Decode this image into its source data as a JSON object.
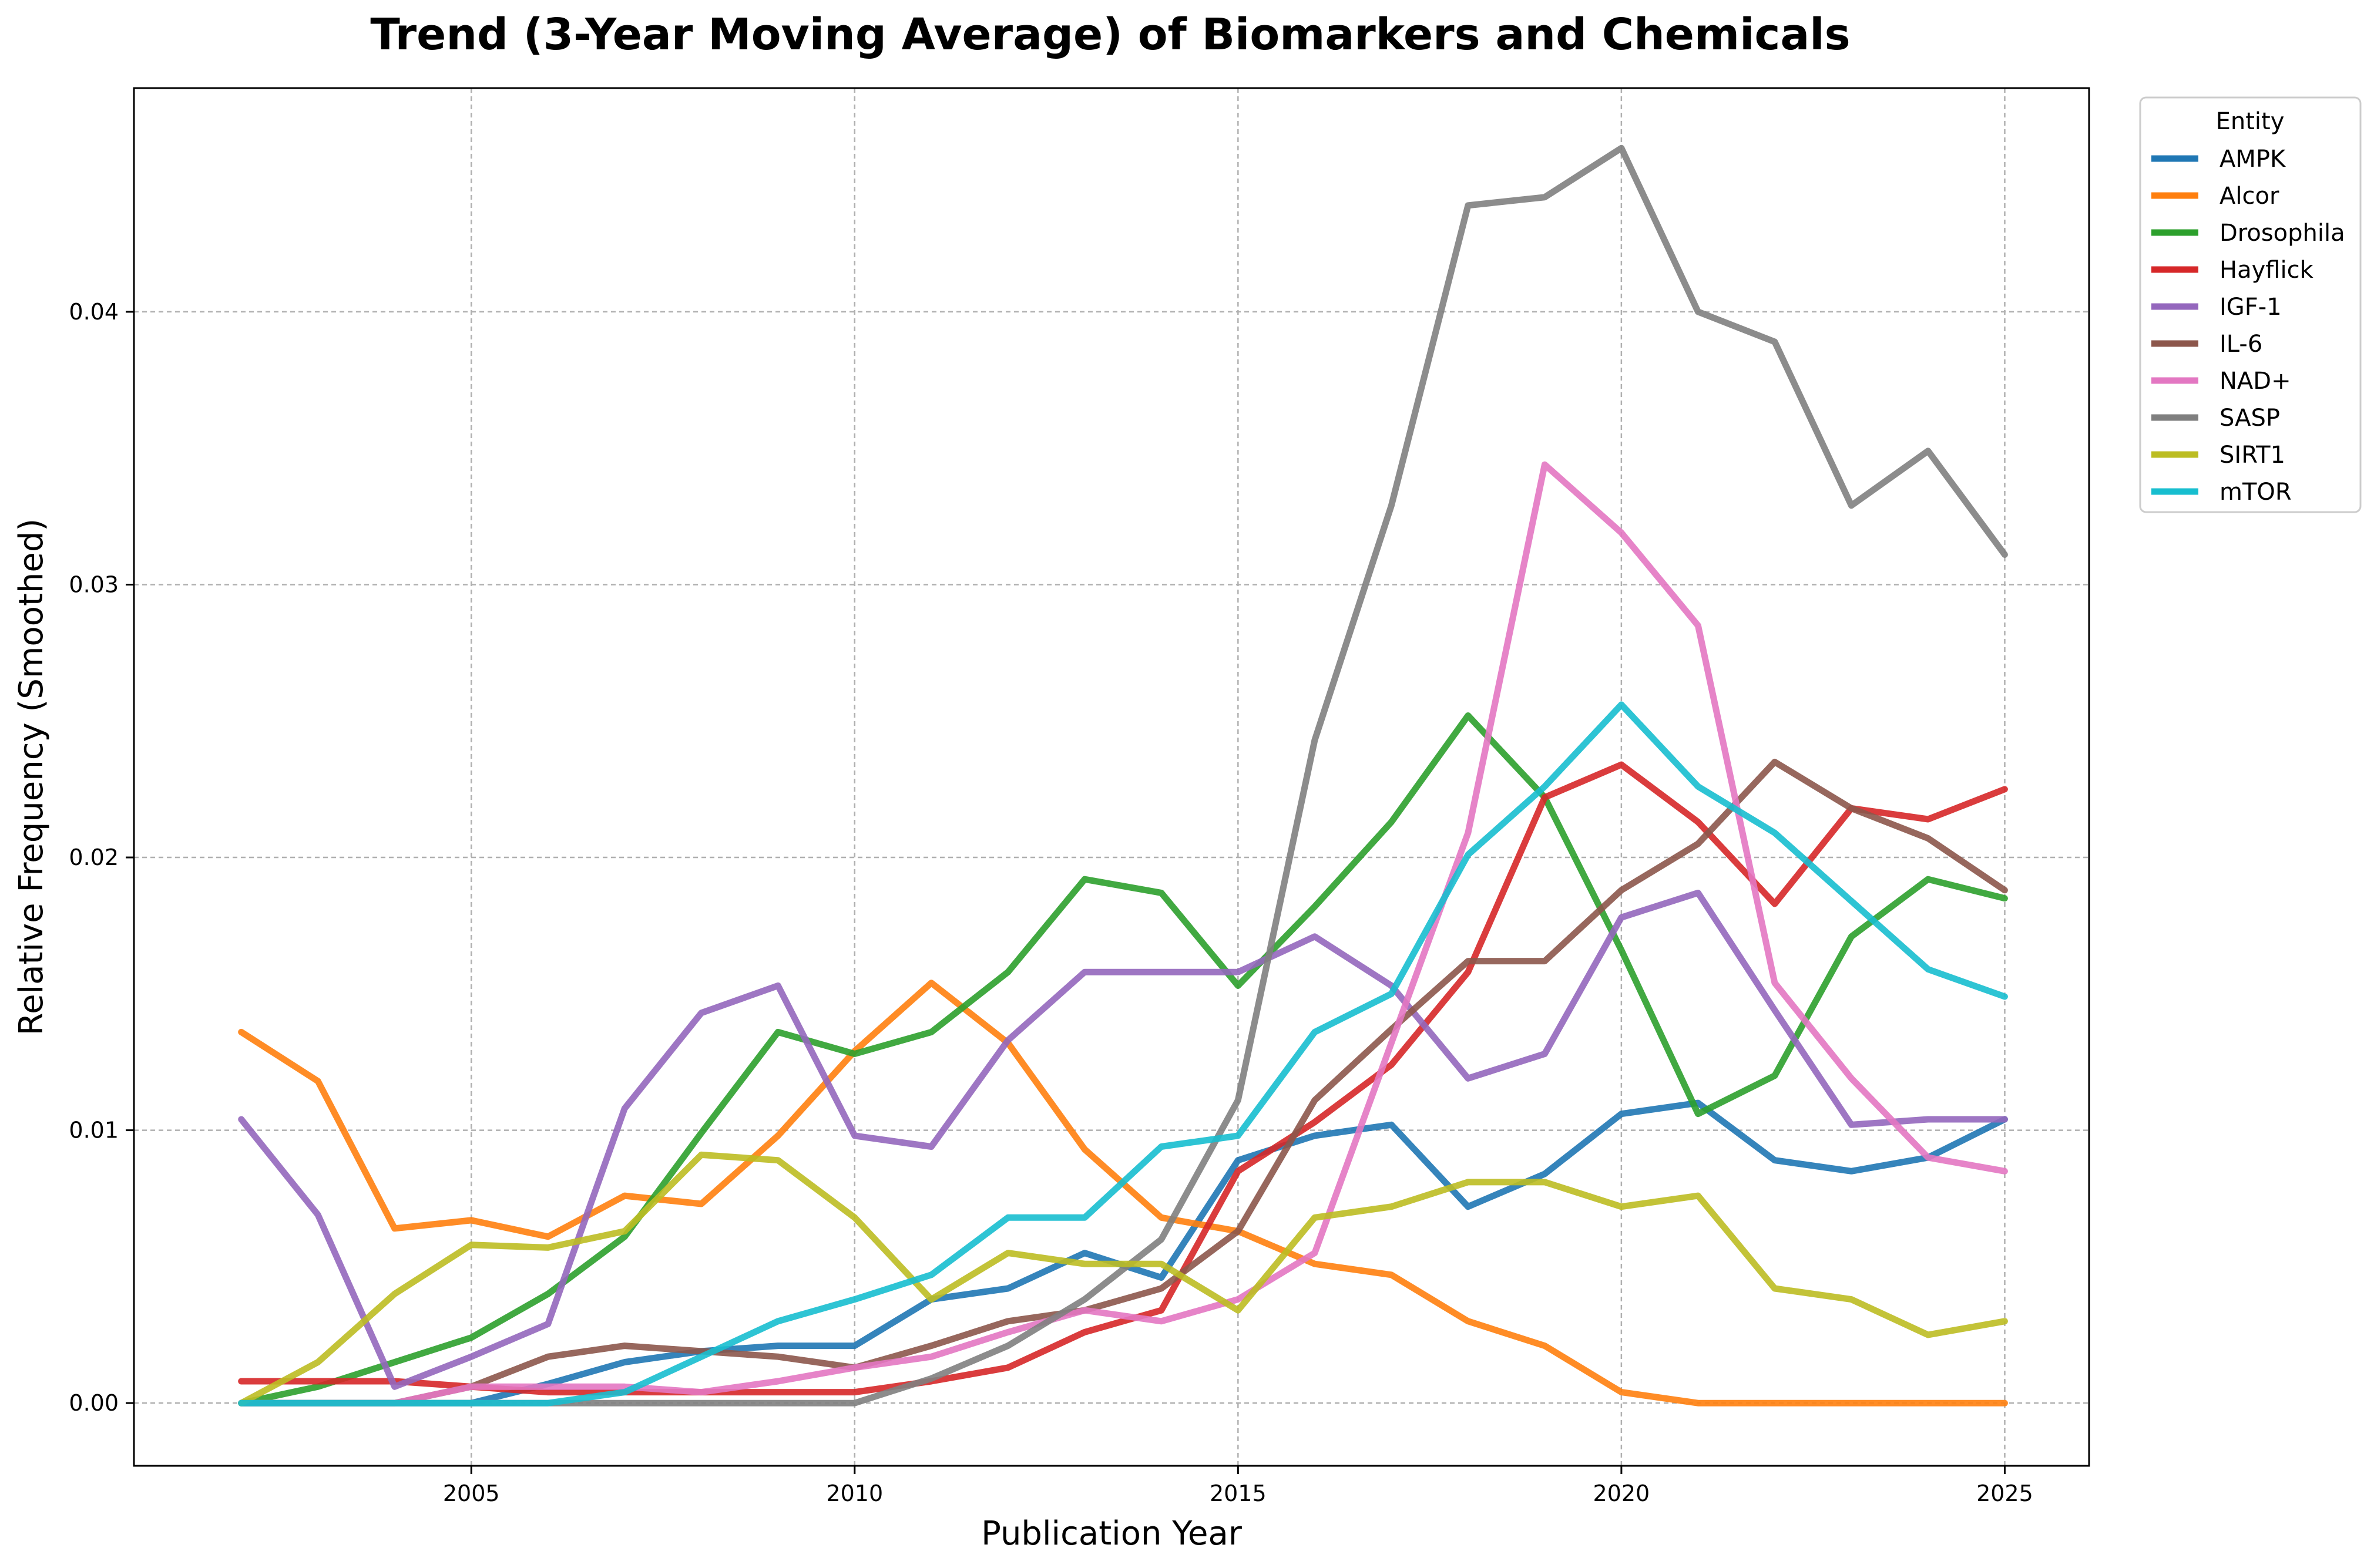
{
  "chart_data": {
    "type": "line",
    "title": "Trend (3-Year Moving Average) of Biomarkers and Chemicals",
    "xlabel": "Publication Year",
    "ylabel": "Relative Frequency (Smoothed)",
    "xlim": [
      2000.6,
      2026.1
    ],
    "ylim": [
      -0.0023,
      0.0482
    ],
    "xticks": [
      2005,
      2010,
      2015,
      2020,
      2025
    ],
    "xtick_labels": [
      "2005",
      "2010",
      "2015",
      "2020",
      "2025"
    ],
    "yticks": [
      0.0,
      0.01,
      0.02,
      0.03,
      0.04
    ],
    "ytick_labels": [
      "0.00",
      "0.01",
      "0.02",
      "0.03",
      "0.04"
    ],
    "grid": true,
    "legend": {
      "title": "Entity",
      "placement": "outside-top-right"
    },
    "x": [
      2002,
      2003,
      2004,
      2005,
      2006,
      2007,
      2008,
      2009,
      2010,
      2011,
      2012,
      2013,
      2014,
      2015,
      2016,
      2017,
      2018,
      2019,
      2020,
      2021,
      2022,
      2023,
      2024,
      2025
    ],
    "series": [
      {
        "name": "AMPK",
        "color": "#1f77b4",
        "values": [
          0.0,
          0.0,
          0.0,
          0.0,
          0.0007,
          0.0015,
          0.0019,
          0.0021,
          0.0021,
          0.0038,
          0.0042,
          0.0055,
          0.0046,
          0.0089,
          0.0098,
          0.0102,
          0.0072,
          0.0084,
          0.0106,
          0.011,
          0.0089,
          0.0085,
          0.009,
          0.0104
        ]
      },
      {
        "name": "Alcor",
        "color": "#ff7f0e",
        "values": [
          0.0136,
          0.0118,
          0.0064,
          0.0067,
          0.0061,
          0.0076,
          0.0073,
          0.0098,
          0.0129,
          0.0154,
          0.0132,
          0.0093,
          0.0068,
          0.0063,
          0.0051,
          0.0047,
          0.003,
          0.0021,
          0.0004,
          0.0,
          0.0,
          0.0,
          0.0,
          0.0
        ]
      },
      {
        "name": "Drosophila",
        "color": "#2ca02c",
        "values": [
          0.0,
          0.0006,
          0.0015,
          0.0024,
          0.004,
          0.0061,
          0.0099,
          0.0136,
          0.0128,
          0.0136,
          0.0158,
          0.0192,
          0.0187,
          0.0153,
          0.0182,
          0.0213,
          0.0252,
          0.0222,
          0.0166,
          0.0106,
          0.012,
          0.0171,
          0.0192,
          0.0185
        ]
      },
      {
        "name": "Hayflick",
        "color": "#d62728",
        "values": [
          0.0008,
          0.0008,
          0.0008,
          0.0006,
          0.0004,
          0.0004,
          0.0004,
          0.0004,
          0.0004,
          0.0008,
          0.0013,
          0.0026,
          0.0034,
          0.0085,
          0.0103,
          0.0124,
          0.0158,
          0.0222,
          0.0234,
          0.0213,
          0.0183,
          0.0218,
          0.0214,
          0.0225
        ]
      },
      {
        "name": "IGF-1",
        "color": "#9467bd",
        "values": [
          0.0104,
          0.0069,
          0.0006,
          0.0017,
          0.0029,
          0.0108,
          0.0143,
          0.0153,
          0.0098,
          0.0094,
          0.0133,
          0.0158,
          0.0158,
          0.0158,
          0.0171,
          0.0153,
          0.0119,
          0.0128,
          0.0178,
          0.0187,
          0.0144,
          0.0102,
          0.0104,
          0.0104
        ]
      },
      {
        "name": "IL-6",
        "color": "#8c564b",
        "values": [
          0.0,
          0.0,
          0.0,
          0.0006,
          0.0017,
          0.0021,
          0.0019,
          0.0017,
          0.0013,
          0.0021,
          0.003,
          0.0034,
          0.0042,
          0.0063,
          0.0111,
          0.0137,
          0.0162,
          0.0162,
          0.0188,
          0.0205,
          0.0235,
          0.0218,
          0.0207,
          0.0188
        ]
      },
      {
        "name": "NAD+",
        "color": "#e377c2",
        "values": [
          0.0,
          0.0,
          0.0,
          0.0006,
          0.0006,
          0.0006,
          0.0004,
          0.0008,
          0.0013,
          0.0017,
          0.0026,
          0.0034,
          0.003,
          0.0038,
          0.0055,
          0.0132,
          0.0209,
          0.0344,
          0.0319,
          0.0285,
          0.0154,
          0.0119,
          0.009,
          0.0085
        ]
      },
      {
        "name": "SASP",
        "color": "#7f7f7f",
        "values": [
          0.0,
          0.0,
          0.0,
          0.0,
          0.0,
          0.0,
          0.0,
          0.0,
          0.0,
          0.0009,
          0.0021,
          0.0038,
          0.006,
          0.0111,
          0.0243,
          0.0329,
          0.0439,
          0.0442,
          0.046,
          0.04,
          0.0389,
          0.0329,
          0.0349,
          0.0311
        ]
      },
      {
        "name": "SIRT1",
        "color": "#bcbd22",
        "values": [
          0.0,
          0.0015,
          0.004,
          0.0058,
          0.0057,
          0.0063,
          0.0091,
          0.0089,
          0.0068,
          0.0038,
          0.0055,
          0.0051,
          0.0051,
          0.0034,
          0.0068,
          0.0072,
          0.0081,
          0.0081,
          0.0072,
          0.0076,
          0.0042,
          0.0038,
          0.0025,
          0.003
        ]
      },
      {
        "name": "mTOR",
        "color": "#17becf",
        "values": [
          0.0,
          0.0,
          0.0,
          0.0,
          0.0,
          0.0004,
          0.0017,
          0.003,
          0.0038,
          0.0047,
          0.0068,
          0.0068,
          0.0094,
          0.0098,
          0.0136,
          0.015,
          0.0201,
          0.0226,
          0.0256,
          0.0226,
          0.0209,
          0.0184,
          0.0159,
          0.0149
        ]
      }
    ]
  }
}
